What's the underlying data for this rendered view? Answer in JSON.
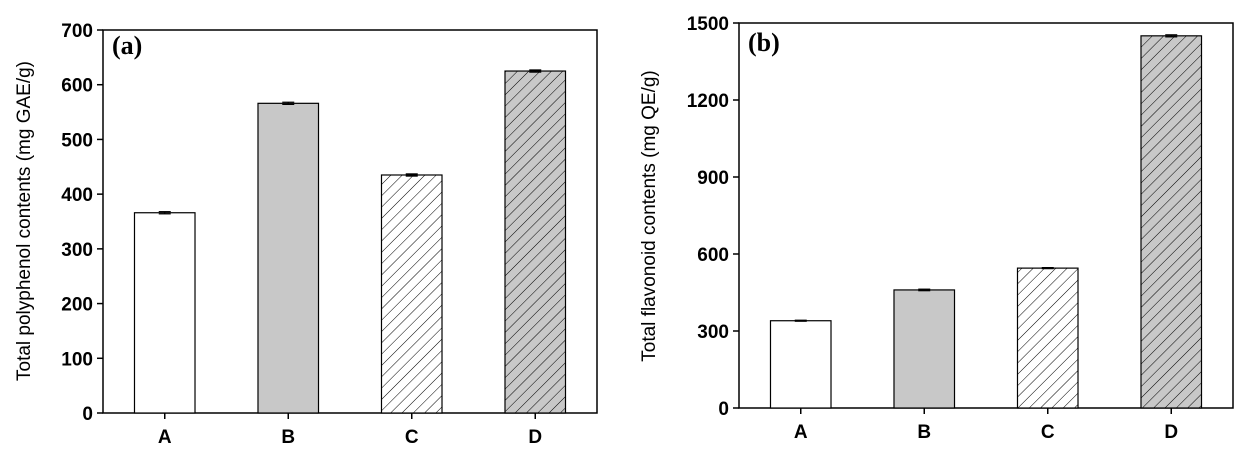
{
  "chart_data": [
    {
      "type": "bar",
      "panel_label": "(a)",
      "title": "",
      "xlabel": "",
      "ylabel": "Total polyphenol contents (mg GAE/g)",
      "categories": [
        "A",
        "B",
        "C",
        "D"
      ],
      "values": [
        366,
        566,
        435,
        625
      ],
      "errors": [
        2,
        2,
        2,
        2
      ],
      "ylim": [
        0,
        700
      ],
      "yticks": [
        0,
        100,
        200,
        300,
        400,
        500,
        600,
        700
      ],
      "ytick_labels": [
        "0",
        "100",
        "200",
        "300",
        "400",
        "500",
        "600",
        "700"
      ],
      "bar_styles": [
        "white",
        "gray",
        "hatch-white",
        "hatch-gray"
      ],
      "grid": false,
      "legend": "none"
    },
    {
      "type": "bar",
      "panel_label": "(b)",
      "title": "",
      "xlabel": "",
      "ylabel": "Total flavonoid contents (mg QE/g)",
      "categories": [
        "A",
        "B",
        "C",
        "D"
      ],
      "values": [
        340,
        460,
        545,
        1450
      ],
      "errors": [
        2,
        3,
        2,
        4
      ],
      "ylim": [
        0,
        1500
      ],
      "yticks": [
        0,
        300,
        600,
        900,
        1200,
        1500
      ],
      "ytick_labels": [
        "0",
        "300",
        "600",
        "900",
        "1200",
        "1500"
      ],
      "bar_styles": [
        "white",
        "gray",
        "hatch-white",
        "hatch-gray"
      ],
      "grid": false,
      "legend": "none"
    }
  ],
  "colors": {
    "axis": "#000000",
    "bar_outline": "#000000",
    "white_fill": "#ffffff",
    "gray_fill": "#c8c8c8",
    "hatch_line": "#000000"
  }
}
